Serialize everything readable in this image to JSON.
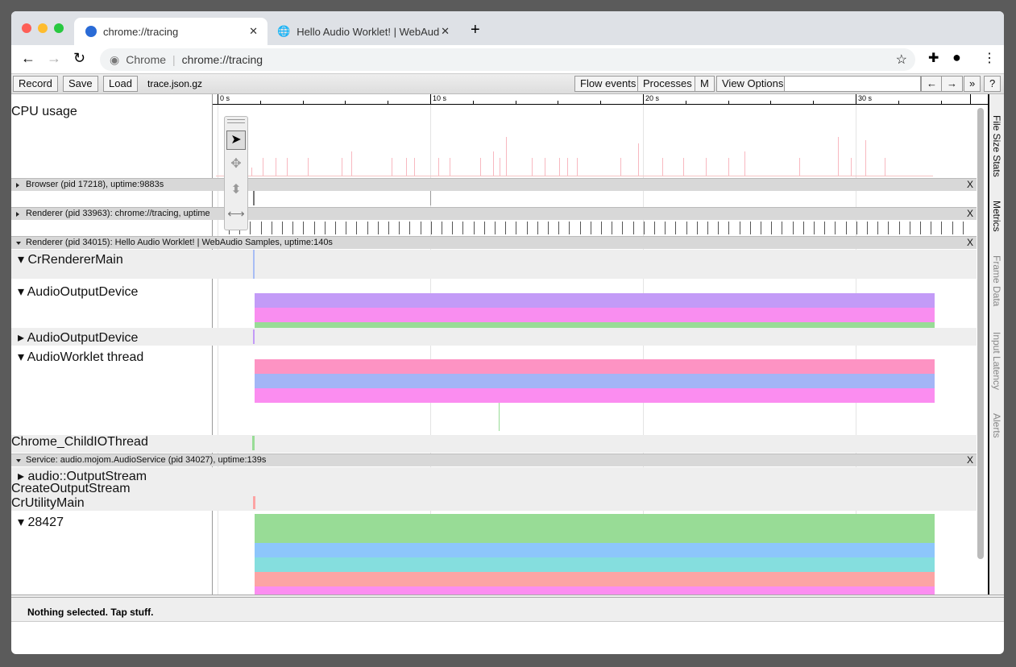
{
  "browser": {
    "tabs": [
      {
        "title": "chrome://tracing",
        "active": true
      },
      {
        "title": "Hello Audio Worklet! | WebAud"
      }
    ],
    "omnibox_site": "Chrome",
    "omnibox_url": "chrome://tracing"
  },
  "toolbar": {
    "record": "Record",
    "save": "Save",
    "load": "Load",
    "filename": "trace.json.gz",
    "flow_events": "Flow events",
    "processes": "Processes",
    "m": "M",
    "view_options": "View Options",
    "search_value": "",
    "prev": "←",
    "next": "→",
    "more": "»",
    "help": "?"
  },
  "ruler": {
    "ticks": [
      "0 s",
      "10 s",
      "20 s",
      "30 s"
    ]
  },
  "tracks": {
    "cpu": "CPU usage",
    "browser_hdr": "Browser (pid 17218), uptime:9883s",
    "renderer1_hdr": "Renderer (pid 33963): chrome://tracing, uptime",
    "renderer2_hdr": "Renderer (pid 34015): Hello Audio Worklet! | WebAudio Samples, uptime:140s",
    "cr_main": "CrRendererMain",
    "aod1": "AudioOutputDevice",
    "aod2": "AudioOutputDevice",
    "worklet": "AudioWorklet thread",
    "childio": "Chrome_ChildIOThread",
    "service_hdr": "Service: audio.mojom.AudioService (pid 34027), uptime:139s",
    "out_stream": "audio::OutputStream",
    "create_stream": "CreateOutputStream",
    "utility": "CrUtilityMain",
    "t28427": "28427",
    "close": "X"
  },
  "slices": {
    "start_s": 1.75,
    "end_s": 33.7,
    "aod1": [
      "#c39bf7",
      "#f98ef0",
      "#98dc96"
    ],
    "worklet": [
      "#fd93c3",
      "#a3b5f6",
      "#fb8df0"
    ],
    "t28427": [
      "#98dc96",
      "#8dc6fb",
      "#85dede",
      "#fca4a4",
      "#fb8df0"
    ]
  },
  "side_tabs": [
    "File Size Stats",
    "Metrics",
    "Frame Data",
    "Input Latency",
    "Alerts"
  ],
  "status": "Nothing selected. Tap stuff."
}
